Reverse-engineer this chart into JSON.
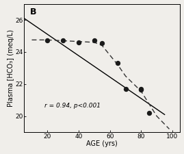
{
  "scatter_x": [
    20,
    30,
    40,
    50,
    55,
    65,
    70,
    80,
    80,
    85
  ],
  "scatter_y": [
    24.7,
    24.7,
    24.6,
    24.7,
    24.55,
    23.3,
    21.7,
    21.7,
    21.65,
    20.2
  ],
  "solid_line_x": [
    5,
    95
  ],
  "solid_line_y": [
    26.1,
    20.1
  ],
  "dashed_line_x": [
    10,
    20,
    30,
    40,
    50,
    55,
    65,
    70,
    80,
    90,
    98
  ],
  "dashed_line_y": [
    24.75,
    24.75,
    24.7,
    24.65,
    24.6,
    24.4,
    23.2,
    22.5,
    21.55,
    20.0,
    19.2
  ],
  "xlabel": "AGE (yrs)",
  "ylabel": "Plasma [HCO₃] (meq/L)",
  "panel_label": "B",
  "annotation": "r = 0.94, p<0.001",
  "xlim": [
    5,
    105
  ],
  "ylim": [
    19.0,
    27.0
  ],
  "xticks": [
    20,
    40,
    60,
    80,
    100
  ],
  "yticks": [
    20,
    22,
    24,
    26
  ],
  "dot_size": 28,
  "dot_color": "#1a1a1a",
  "solid_color": "#000000",
  "dashed_color": "#333333",
  "bg_color": "#f0eeea",
  "font_size_label": 7,
  "font_size_tick": 6.5,
  "font_size_panel": 9,
  "font_size_annot": 6.5,
  "solid_lw": 1.0,
  "dashed_lw": 1.0
}
